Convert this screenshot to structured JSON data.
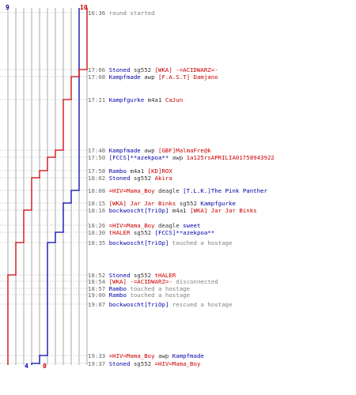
{
  "colors": {
    "blue_team": "#0000aa",
    "red_team": "#cc0000",
    "grid": "#aaaaaa",
    "dotted": "#bbbbbb",
    "time": "#666666",
    "info": "#808080"
  },
  "chart_data": {
    "type": "line",
    "start_scores": {
      "blue": "9",
      "red": "10"
    },
    "end_scores": {
      "blue": "4",
      "red": "0"
    },
    "series": [
      {
        "team": "blue",
        "values": [
          9,
          9,
          9,
          9,
          9,
          9,
          9,
          9,
          9,
          9,
          9,
          8,
          7,
          6,
          6,
          5,
          5,
          4,
          4,
          4,
          4,
          4,
          4,
          4,
          4,
          4
        ]
      },
      {
        "team": "red",
        "values": [
          10,
          9,
          8,
          7,
          6,
          6,
          5,
          4,
          3,
          3,
          2,
          2,
          2,
          2,
          2,
          2,
          1,
          1,
          1,
          0,
          0,
          0,
          0,
          0,
          0,
          0
        ]
      }
    ]
  },
  "events": [
    {
      "time": "16:36",
      "parts": [
        {
          "t": "round started",
          "c": "gray"
        }
      ]
    },
    {
      "time": "17:06",
      "parts": [
        {
          "t": "Stoned",
          "c": "blue"
        },
        {
          "t": " sg552 ",
          "c": "dark"
        },
        {
          "t": "[WKA] -=ACIDWARZ=-",
          "c": "red"
        }
      ]
    },
    {
      "time": "17:08",
      "parts": [
        {
          "t": "Kampfmade",
          "c": "blue"
        },
        {
          "t": " awp ",
          "c": "dark"
        },
        {
          "t": "[F.A.S.T] Damjano",
          "c": "red"
        }
      ]
    },
    {
      "time": "17:21",
      "parts": [
        {
          "t": "Kampfgurke",
          "c": "blue"
        },
        {
          "t": " m4a1 ",
          "c": "dark"
        },
        {
          "t": "CaJun",
          "c": "red"
        }
      ]
    },
    {
      "time": "17:48",
      "parts": [
        {
          "t": "Kampfmade",
          "c": "blue"
        },
        {
          "t": " awp ",
          "c": "dark"
        },
        {
          "t": "[GBF]MalmaFre@k",
          "c": "red"
        }
      ]
    },
    {
      "time": "17:50",
      "parts": [
        {
          "t": "[FCCS]**azekpoa**",
          "c": "blue"
        },
        {
          "t": " awp ",
          "c": "dark"
        },
        {
          "t": "1a125rsAPRILIA01758943922",
          "c": "red"
        }
      ]
    },
    {
      "time": "17:58",
      "parts": [
        {
          "t": "Rambo",
          "c": "blue"
        },
        {
          "t": " m4a1 ",
          "c": "dark"
        },
        {
          "t": "[KD]ROX",
          "c": "red"
        }
      ]
    },
    {
      "time": "18:02",
      "parts": [
        {
          "t": "Stoned",
          "c": "blue"
        },
        {
          "t": " sg552 ",
          "c": "dark"
        },
        {
          "t": "Akira",
          "c": "red"
        }
      ]
    },
    {
      "time": "18:08",
      "parts": [
        {
          "t": "=HIV=Mama_Boy",
          "c": "red"
        },
        {
          "t": " deagle ",
          "c": "dark"
        },
        {
          "t": "[T.L.K.]The Pink Panther",
          "c": "blue"
        }
      ]
    },
    {
      "time": "18:15",
      "parts": [
        {
          "t": "[WKA] Jar Jar Binks",
          "c": "red"
        },
        {
          "t": " sg552 ",
          "c": "dark"
        },
        {
          "t": "Kampfgurke",
          "c": "blue"
        }
      ]
    },
    {
      "time": "18:16",
      "parts": [
        {
          "t": "bockwoscht[TriOp]",
          "c": "blue"
        },
        {
          "t": " m4a1 ",
          "c": "dark"
        },
        {
          "t": "[WKA] Jar Jar Binks",
          "c": "red"
        }
      ]
    },
    {
      "time": "18:26",
      "parts": [
        {
          "t": "=HIV=Mama_Boy",
          "c": "red"
        },
        {
          "t": " deagle ",
          "c": "dark"
        },
        {
          "t": "sweet",
          "c": "blue"
        }
      ]
    },
    {
      "time": "18:30",
      "parts": [
        {
          "t": "tHALER",
          "c": "red"
        },
        {
          "t": " sg552 ",
          "c": "dark"
        },
        {
          "t": "[FCCS]**azekpoa**",
          "c": "blue"
        }
      ]
    },
    {
      "time": "18:35",
      "parts": [
        {
          "t": "bockwoscht[TriOp]",
          "c": "blue"
        },
        {
          "t": " touched a hostage",
          "c": "gray"
        }
      ]
    },
    {
      "time": "18:52",
      "parts": [
        {
          "t": "Stoned",
          "c": "blue"
        },
        {
          "t": " sg552 ",
          "c": "dark"
        },
        {
          "t": "tHALER",
          "c": "red"
        }
      ]
    },
    {
      "time": "18:54",
      "parts": [
        {
          "t": "[WKA] -=ACIDWARZ=-",
          "c": "red"
        },
        {
          "t": " disconnected",
          "c": "gray"
        }
      ]
    },
    {
      "time": "18:57",
      "parts": [
        {
          "t": "Rambo",
          "c": "blue"
        },
        {
          "t": " touched a hostage",
          "c": "gray"
        }
      ]
    },
    {
      "time": "19:00",
      "parts": [
        {
          "t": "Rambo",
          "c": "blue"
        },
        {
          "t": " touched a hostage",
          "c": "gray"
        }
      ]
    },
    {
      "time": "19:07",
      "parts": [
        {
          "t": "bockwoscht[TriOp]",
          "c": "blue"
        },
        {
          "t": " rescued a hostage",
          "c": "gray"
        }
      ]
    },
    {
      "time": "19:33",
      "parts": [
        {
          "t": "=HIV=Mama_Boy",
          "c": "red"
        },
        {
          "t": " awp ",
          "c": "dark"
        },
        {
          "t": "Kampfmade",
          "c": "blue"
        }
      ]
    },
    {
      "time": "19:37",
      "parts": [
        {
          "t": "Stoned",
          "c": "blue"
        },
        {
          "t": " sg552 ",
          "c": "dark"
        },
        {
          "t": "=HIV=Mama_Boy",
          "c": "red"
        }
      ]
    }
  ]
}
